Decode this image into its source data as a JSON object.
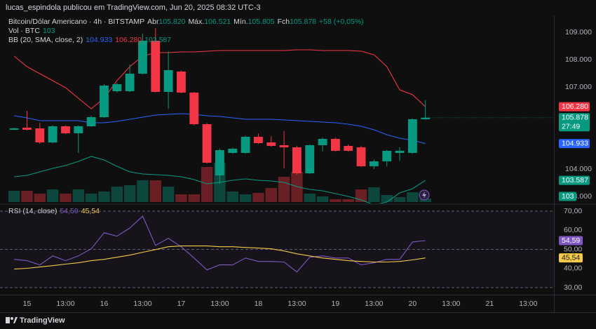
{
  "header": {
    "attribution": "lucas_espindola publicou em TradingView.com, Jun 20, 2025 08:32 UTC-3"
  },
  "footer": {
    "brand": "TradingView"
  },
  "chart_data": [
    {
      "type": "candlestick",
      "title": "Bitcoin/Dólar Americano · 4h · BITSTAMP",
      "ohlc_legend": [
        {
          "label": "Abr",
          "value": "105.820"
        },
        {
          "label": "Máx.",
          "value": "106.521"
        },
        {
          "label": "Mín.",
          "value": "105.805"
        },
        {
          "label": "Fch",
          "value": "105.878"
        }
      ],
      "change": "+58 (+0,05%)",
      "x": [
        -4,
        0,
        4,
        8,
        12,
        16,
        20,
        24,
        28,
        32,
        36,
        40,
        44,
        48,
        52,
        56,
        60,
        64,
        68,
        72,
        76,
        80,
        84,
        88,
        92,
        96,
        100,
        104,
        108,
        112,
        116,
        120,
        124
      ],
      "open": [
        105436,
        105513,
        105487,
        104974,
        105564,
        105308,
        105564,
        105897,
        106846,
        106846,
        107487,
        108692,
        106821,
        107564,
        106795,
        105641,
        103769,
        104590,
        104590,
        105179,
        104974,
        104872,
        104795,
        103846,
        104872,
        105103,
        104846,
        104795,
        104103,
        104282,
        104590,
        104590,
        105820
      ],
      "high": [
        105513,
        106128,
        105692,
        105600,
        105600,
        105600,
        105950,
        107100,
        107150,
        107821,
        108949,
        109154,
        108308,
        107600,
        106820,
        105680,
        104750,
        104780,
        105220,
        105300,
        105200,
        105385,
        104850,
        104900,
        105150,
        105150,
        104900,
        104850,
        104350,
        104700,
        104800,
        105850,
        106521
      ],
      "low": [
        105436,
        105410,
        104923,
        104950,
        105280,
        104590,
        105540,
        105870,
        106800,
        106820,
        107460,
        106800,
        106205,
        106770,
        105600,
        104200,
        103462,
        104560,
        104560,
        104920,
        104820,
        104026,
        103800,
        103820,
        104650,
        104640,
        104640,
        104080,
        104000,
        104100,
        104300,
        104560,
        105805
      ],
      "close": [
        105487,
        105436,
        104974,
        105564,
        105308,
        105564,
        105897,
        107051,
        107103,
        107487,
        108692,
        106821,
        107615,
        106795,
        105641,
        104231,
        104692,
        104744,
        105179,
        104949,
        104846,
        104795,
        103846,
        104872,
        105103,
        104667,
        104667,
        104103,
        104282,
        104667,
        104667,
        105821,
        105878
      ],
      "up_color": "#089981",
      "down_color": "#f23645",
      "volume": {
        "name": "Vol · BTC",
        "values": [
          330,
          330,
          247,
          371,
          247,
          371,
          247,
          309,
          453,
          494,
          639,
          639,
          453,
          227,
          227,
          1030,
          1154,
          309,
          227,
          268,
          412,
          742,
          886,
          247,
          165,
          82,
          82,
          371,
          433,
          206,
          144,
          288,
          103
        ],
        "value_label": "103"
      },
      "indicator": "BB (20, SMA, close, 2)",
      "series": [
        {
          "color": "#2962ff",
          "values": [
            105949,
            105872,
            105769,
            105769,
            105769,
            105769,
            105692,
            105692,
            105744,
            105821,
            105897,
            105974,
            106000,
            106026,
            106000,
            105949,
            105923,
            105872,
            105821,
            105821,
            105821,
            105795,
            105769,
            105744,
            105718,
            105692,
            105641,
            105564,
            105436,
            105256,
            105128,
            105051,
            104933
          ]
        },
        {
          "color": "#f23645",
          "values": [
            108128,
            107744,
            107487,
            107231,
            106974,
            106590,
            106205,
            106590,
            107231,
            107744,
            108128,
            108256,
            108256,
            108282,
            108282,
            108308,
            108333,
            108333,
            108333,
            108333,
            108333,
            108333,
            108359,
            108359,
            108333,
            108333,
            108333,
            108308,
            108179,
            107744,
            106897,
            106718,
            106280
          ]
        },
        {
          "color": "#089981",
          "values": [
            103718,
            103769,
            103897,
            104026,
            104128,
            104282,
            104462,
            104333,
            104103,
            103897,
            103821,
            103795,
            103769,
            103718,
            103615,
            103462,
            103513,
            103590,
            103641,
            103590,
            103564,
            103513,
            103359,
            103256,
            103205,
            103103,
            103000,
            102872,
            102692,
            102795,
            103128,
            103282,
            103587
          ]
        }
      ],
      "badges": [
        {
          "label": "106.280",
          "value": 106280,
          "color": "#f23645"
        },
        {
          "label": "105.878",
          "value": 105878,
          "color": "#089981",
          "countdown": "27:49"
        },
        {
          "label": "104.933",
          "value": 104933,
          "color": "#2962ff"
        },
        {
          "label": "103.587",
          "value": 103587,
          "color": "#089981"
        }
      ],
      "xlim": [
        -8.4,
        164
      ],
      "ylim": [
        102744,
        109410
      ],
      "yticks": [
        {
          "value": 109000,
          "label": "109.000"
        },
        {
          "value": 108000,
          "label": "108.000"
        },
        {
          "value": 107000,
          "label": "107.000"
        },
        {
          "value": 104000,
          "label": "104.000"
        },
        {
          "value": 103000,
          "label": "103.000"
        }
      ]
    },
    {
      "type": "line",
      "title": "RSI (14, close)",
      "x": [
        -4,
        0,
        4,
        8,
        12,
        16,
        20,
        24,
        28,
        32,
        36,
        40,
        44,
        48,
        52,
        56,
        60,
        64,
        68,
        72,
        76,
        80,
        84,
        88,
        92,
        96,
        100,
        104,
        108,
        112,
        116,
        120,
        124
      ],
      "series": [
        {
          "color": "#7e57c2",
          "values": [
            44.8,
            44.1,
            41.9,
            46.6,
            44.1,
            46.6,
            50.3,
            58.7,
            56.9,
            61.2,
            67.4,
            52.1,
            55.8,
            51.4,
            45.5,
            39.3,
            41.9,
            41.9,
            45.5,
            43.7,
            43.7,
            43.4,
            38.2,
            45.9,
            46.6,
            45.5,
            45.5,
            41.9,
            43.0,
            44.8,
            44.8,
            53.9,
            54.59
          ],
          "value_label": "54,59"
        },
        {
          "color": "#f7c948",
          "values": [
            39.7,
            40.1,
            40.8,
            41.5,
            42.3,
            43.0,
            44.1,
            44.8,
            45.9,
            47.0,
            48.5,
            49.9,
            51.4,
            51.8,
            51.8,
            51.8,
            51.4,
            51.4,
            51.0,
            50.7,
            50.3,
            49.2,
            47.7,
            46.6,
            45.5,
            44.8,
            44.1,
            43.7,
            43.4,
            43.4,
            43.7,
            44.5,
            45.54
          ],
          "value_label": "45,54"
        }
      ],
      "hlines": [
        70,
        50,
        30
      ],
      "xlim": [
        -8.4,
        164
      ],
      "xticks": [
        {
          "value": 0,
          "label": "15"
        },
        {
          "value": 12,
          "label": "13:00"
        },
        {
          "value": 24,
          "label": "16"
        },
        {
          "value": 36,
          "label": "13:00"
        },
        {
          "value": 48,
          "label": "17"
        },
        {
          "value": 60,
          "label": "13:00"
        },
        {
          "value": 72,
          "label": "18"
        },
        {
          "value": 84,
          "label": "13:00"
        },
        {
          "value": 96,
          "label": "19"
        },
        {
          "value": 108,
          "label": "13:00"
        },
        {
          "value": 120,
          "label": "20"
        },
        {
          "value": 132,
          "label": "13:00"
        },
        {
          "value": 144,
          "label": "21"
        },
        {
          "value": 156,
          "label": "13:00"
        }
      ],
      "ylim": [
        26.35,
        73.3
      ],
      "yticks": [
        {
          "value": 70,
          "label": "70,00"
        },
        {
          "value": 60,
          "label": "60,00"
        },
        {
          "value": 50,
          "label": "50,00"
        },
        {
          "value": 40,
          "label": "40,00"
        },
        {
          "value": 30,
          "label": "30,00"
        }
      ]
    }
  ]
}
